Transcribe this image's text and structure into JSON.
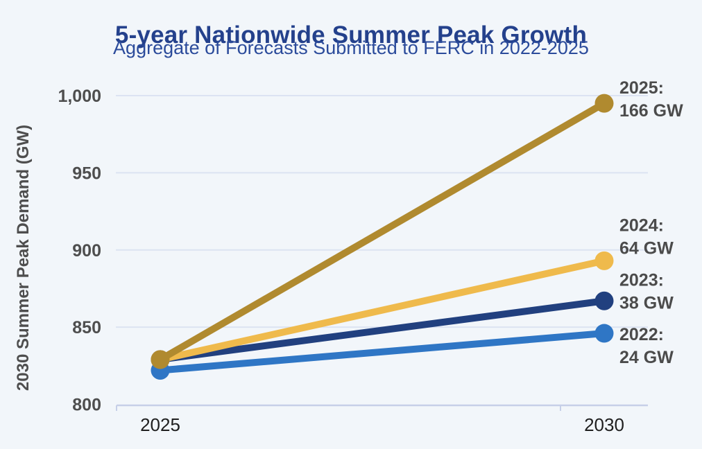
{
  "page": {
    "background_color": "#f2f6fa"
  },
  "header": {
    "title": "5-year Nationwide Summer Peak Growth",
    "subtitle": "Aggregate of Forecasts Submitted to FERC in 2022-2025",
    "title_color": "#24418c",
    "subtitle_color": "#2b4b9b"
  },
  "chart_data": {
    "type": "line",
    "title": "5-year Nationwide Summer Peak Growth",
    "subtitle": "Aggregate of Forecasts Submitted to FERC in 2022-2025",
    "xlabel": "",
    "ylabel": "2030 Summer Peak Demand (GW)",
    "x_categories": [
      "2025",
      "2030"
    ],
    "ylim": [
      800,
      1000
    ],
    "yticks": [
      800,
      850,
      900,
      950,
      1000
    ],
    "ytick_labels": [
      "800",
      "850",
      "900",
      "950",
      "1,000"
    ],
    "grid": true,
    "legend": "none (direct line annotations at right)",
    "series": [
      {
        "name": "2022 forecast",
        "values": [
          822,
          846
        ],
        "growth_gw": 24,
        "annotation_line1": "2022:",
        "annotation_line2": "24 GW",
        "color": "#2f76c5",
        "label_dy": 18
      },
      {
        "name": "2023 forecast",
        "values": [
          829,
          867
        ],
        "growth_gw": 38,
        "annotation_line1": "2023:",
        "annotation_line2": "38 GW",
        "color": "#21407f",
        "label_dy": -14
      },
      {
        "name": "2024 forecast",
        "values": [
          829,
          893
        ],
        "growth_gw": 64,
        "annotation_line1": "2024:",
        "annotation_line2": "64 GW",
        "color": "#efba4c",
        "label_dy": -35
      },
      {
        "name": "2025 forecast",
        "values": [
          829,
          995
        ],
        "growth_gw": 166,
        "annotation_line1": "2025:",
        "annotation_line2": "166 GW",
        "color": "#b08a2f",
        "label_dy": -6
      }
    ],
    "colors": {
      "gridline": "#dce3f2",
      "axis_line": "#c6cfe8",
      "ytick_text": "#4e4e4e",
      "xtick_text": "#1f1f1f",
      "annotation_text": "#4b4b4b",
      "axis_title_text": "#4e4e4e"
    }
  }
}
